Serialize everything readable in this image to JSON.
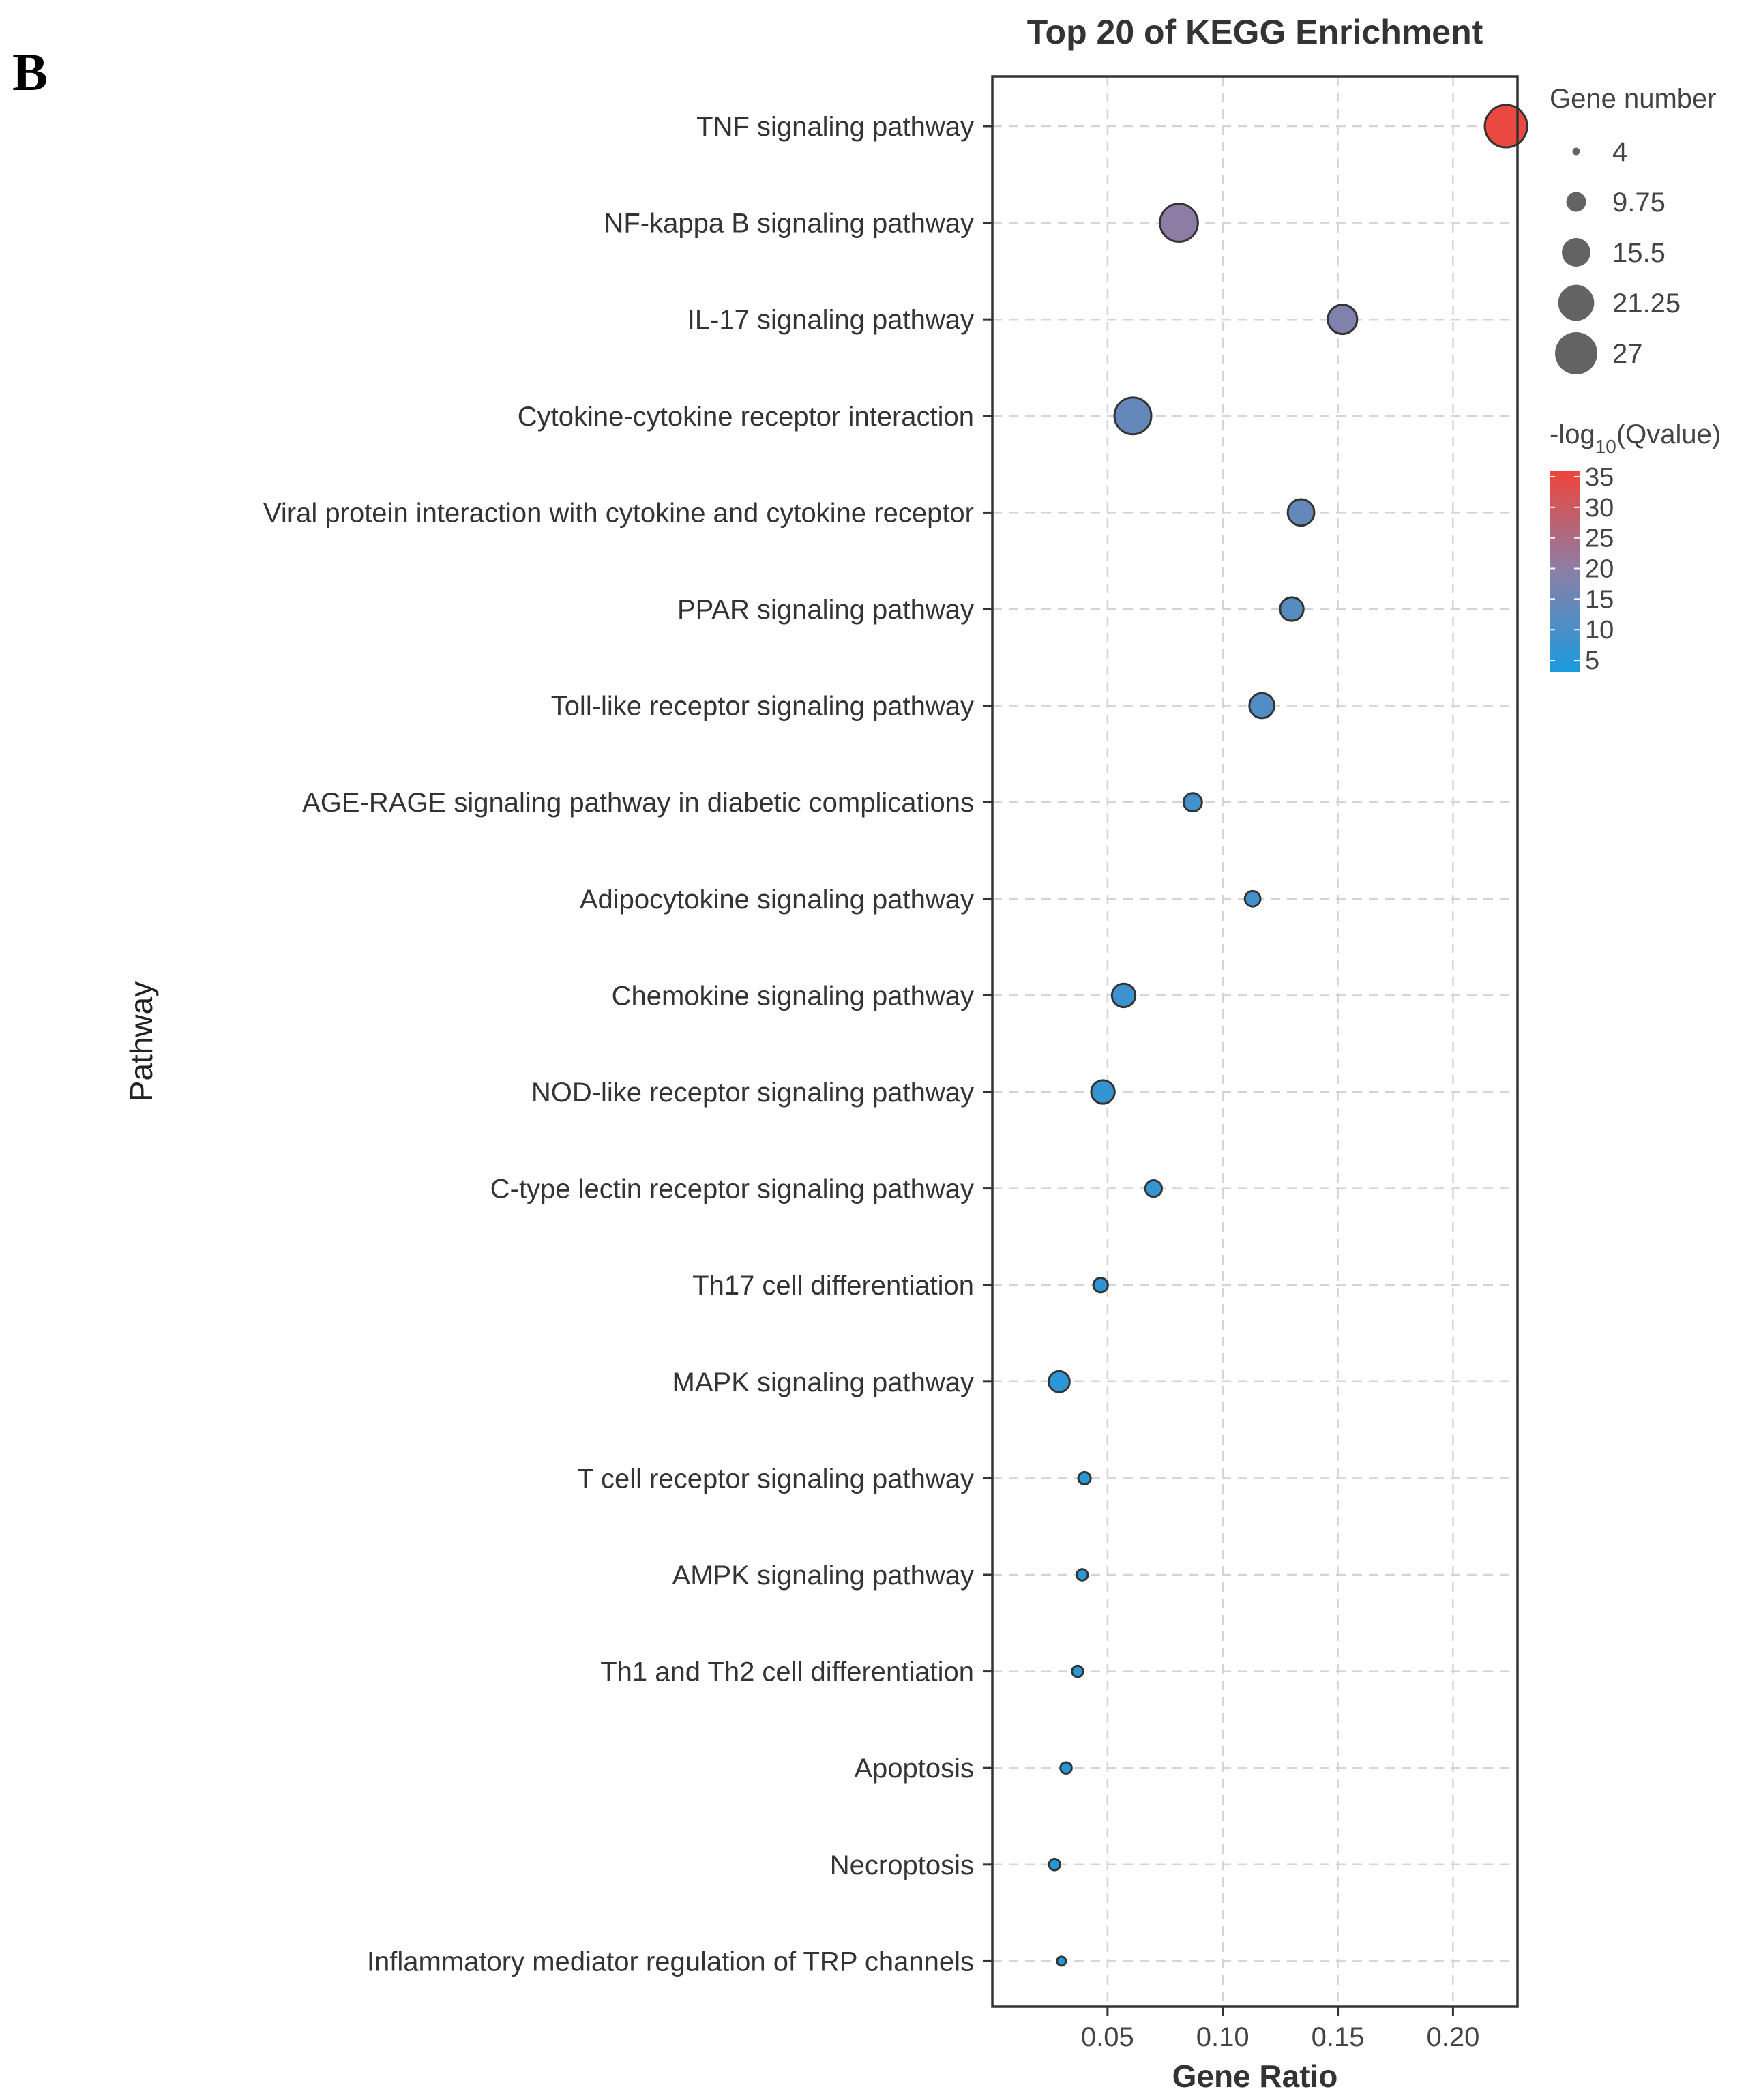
{
  "panel_label": "B",
  "chart_data": {
    "type": "scatter",
    "title": "Top 20 of KEGG Enrichment",
    "xlabel": "Gene Ratio",
    "ylabel": "Pathway",
    "xlim": [
      0.0,
      0.228
    ],
    "x_ticks": [
      0.05,
      0.1,
      0.15,
      0.2
    ],
    "x_tick_labels": [
      "0.05",
      "0.10",
      "0.15",
      "0.20"
    ],
    "grid": true,
    "size_legend": {
      "title": "Gene number",
      "labels": [
        "4",
        "9.75",
        "15.5",
        "21.25",
        "27"
      ],
      "values": [
        4,
        9.75,
        15.5,
        21.25,
        27
      ]
    },
    "color_legend": {
      "title_prefix": "-log",
      "title_subscript": "10",
      "title_suffix": "(Qvalue)",
      "labels": [
        "35",
        "30",
        "25",
        "20",
        "15",
        "10",
        "5"
      ],
      "values": [
        35,
        30,
        25,
        20,
        15,
        10,
        5
      ],
      "min": 3,
      "max": 36,
      "low_color": "#1a9be0",
      "mid_color": "#8a7fa8",
      "high_color": "#f0443a"
    },
    "points": [
      {
        "pathway": "TNF signaling pathway",
        "gene_ratio": 0.223,
        "gene_number": 27,
        "neg_log10_q": 35
      },
      {
        "pathway": "NF-kappa B signaling pathway",
        "gene_ratio": 0.081,
        "gene_number": 23,
        "neg_log10_q": 20
      },
      {
        "pathway": "IL-17 signaling pathway",
        "gene_ratio": 0.152,
        "gene_number": 16,
        "neg_log10_q": 18
      },
      {
        "pathway": "Cytokine-cytokine receptor interaction",
        "gene_ratio": 0.061,
        "gene_number": 22,
        "neg_log10_q": 14
      },
      {
        "pathway": "Viral protein interaction with cytokine and cytokine receptor",
        "gene_ratio": 0.134,
        "gene_number": 14,
        "neg_log10_q": 14
      },
      {
        "pathway": "PPAR signaling pathway",
        "gene_ratio": 0.13,
        "gene_number": 12,
        "neg_log10_q": 12
      },
      {
        "pathway": "Toll-like receptor signaling pathway",
        "gene_ratio": 0.117,
        "gene_number": 13,
        "neg_log10_q": 11
      },
      {
        "pathway": "AGE-RAGE signaling pathway in diabetic complications",
        "gene_ratio": 0.087,
        "gene_number": 9,
        "neg_log10_q": 9
      },
      {
        "pathway": "Adipocytokine signaling pathway",
        "gene_ratio": 0.113,
        "gene_number": 7.5,
        "neg_log10_q": 9
      },
      {
        "pathway": "Chemokine signaling pathway",
        "gene_ratio": 0.057,
        "gene_number": 12,
        "neg_log10_q": 8
      },
      {
        "pathway": "NOD-like receptor signaling pathway",
        "gene_ratio": 0.048,
        "gene_number": 12,
        "neg_log10_q": 7
      },
      {
        "pathway": "C-type lectin receptor signaling pathway",
        "gene_ratio": 0.07,
        "gene_number": 8,
        "neg_log10_q": 7
      },
      {
        "pathway": "Th17 cell differentiation",
        "gene_ratio": 0.047,
        "gene_number": 7,
        "neg_log10_q": 6
      },
      {
        "pathway": "MAPK signaling pathway",
        "gene_ratio": 0.029,
        "gene_number": 10.5,
        "neg_log10_q": 5.5
      },
      {
        "pathway": "T cell receptor signaling pathway",
        "gene_ratio": 0.04,
        "gene_number": 6,
        "neg_log10_q": 5
      },
      {
        "pathway": "AMPK signaling pathway",
        "gene_ratio": 0.039,
        "gene_number": 5.5,
        "neg_log10_q": 5
      },
      {
        "pathway": "Th1 and Th2 cell differentiation",
        "gene_ratio": 0.037,
        "gene_number": 5.5,
        "neg_log10_q": 5
      },
      {
        "pathway": "Apoptosis",
        "gene_ratio": 0.032,
        "gene_number": 5.5,
        "neg_log10_q": 4.5
      },
      {
        "pathway": "Necroptosis",
        "gene_ratio": 0.027,
        "gene_number": 5.5,
        "neg_log10_q": 4.5
      },
      {
        "pathway": "Inflammatory mediator regulation of TRP channels",
        "gene_ratio": 0.03,
        "gene_number": 4.5,
        "neg_log10_q": 4
      }
    ]
  }
}
